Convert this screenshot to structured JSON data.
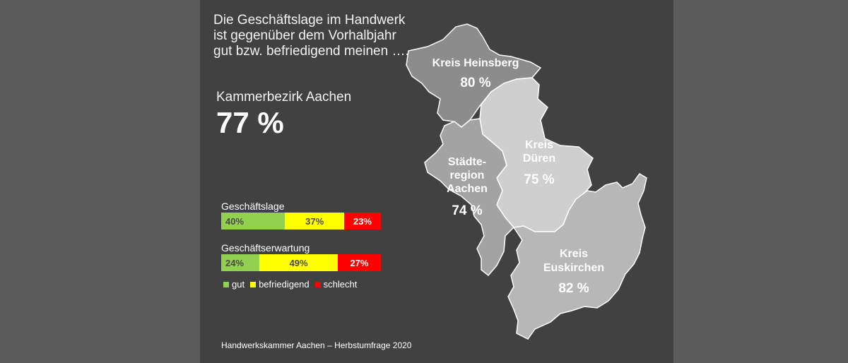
{
  "headline": [
    "Die Geschäftslage im Handwerk",
    "ist gegenüber dem Vorhalbjahr",
    "gut bzw. befriedigend meinen …."
  ],
  "total": {
    "label": "Kammerbezirk Aachen",
    "value": "77 %"
  },
  "chart_data": [
    {
      "type": "bar",
      "orientation": "horizontal-stacked",
      "title": "Geschäftslage",
      "series": [
        {
          "name": "gut",
          "value": 40,
          "label": "40%",
          "color": "#92d050"
        },
        {
          "name": "befriedigend",
          "value": 37,
          "label": "37%",
          "color": "#ffff00"
        },
        {
          "name": "schlecht",
          "value": 23,
          "label": "23%",
          "color": "#ff0000"
        }
      ]
    },
    {
      "type": "bar",
      "orientation": "horizontal-stacked",
      "title": "Geschäftserwartung",
      "series": [
        {
          "name": "gut",
          "value": 24,
          "label": "24%",
          "color": "#92d050"
        },
        {
          "name": "befriedigend",
          "value": 49,
          "label": "49%",
          "color": "#ffff00"
        },
        {
          "name": "schlecht",
          "value": 27,
          "label": "27%",
          "color": "#ff0000"
        }
      ]
    }
  ],
  "legend": [
    {
      "label": "gut",
      "color": "#92d050"
    },
    {
      "label": "befriedigend",
      "color": "#ffff00"
    },
    {
      "label": "schlecht",
      "color": "#ff0000"
    }
  ],
  "regions": [
    {
      "id": "heinsberg",
      "lines": [
        "Kreis Heinsberg"
      ],
      "value": "80 %",
      "color": "#8c8c8c"
    },
    {
      "id": "dueren",
      "lines": [
        "Kreis",
        "Düren"
      ],
      "value": "75 %",
      "color": "#cfcfcf"
    },
    {
      "id": "aachen",
      "lines": [
        "Städte-",
        "region",
        "Aachen"
      ],
      "value": "74 %",
      "color": "#a3a3a3"
    },
    {
      "id": "euskirchen",
      "lines": [
        "Kreis",
        "Euskirchen"
      ],
      "value": "82 %",
      "color": "#b7b7b7"
    }
  ],
  "footer": "Handwerkskammer Aachen – Herbstumfrage 2020"
}
